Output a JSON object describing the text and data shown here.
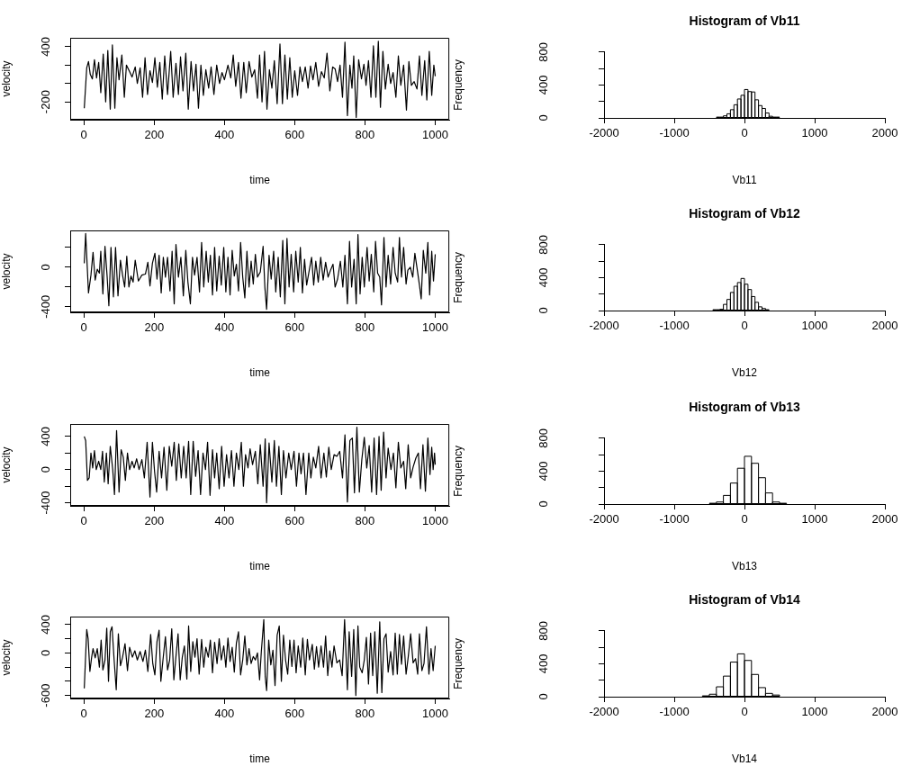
{
  "chart_data": [
    {
      "type": "line",
      "xlabel": "time",
      "ylabel": "velocity",
      "color": "#000000",
      "xlim": [
        -39,
        1040
      ],
      "ylim": [
        -395,
        498
      ],
      "xticks": [
        0,
        200,
        400,
        600,
        800,
        1000
      ],
      "yticks": [
        -200,
        {
          "value": 0,
          "label": null
        },
        {
          "value": 200,
          "label": null
        },
        400
      ],
      "x": [
        1,
        8,
        13,
        18,
        24,
        30,
        36,
        42,
        48,
        55,
        62,
        68,
        75,
        81,
        88,
        94,
        100,
        108,
        115,
        121,
        130,
        137,
        146,
        152,
        160,
        167,
        174,
        181,
        188,
        195,
        202,
        209,
        216,
        223,
        230,
        238,
        247,
        254,
        262,
        269,
        275,
        282,
        290,
        297,
        305,
        312,
        319,
        326,
        333,
        340,
        347,
        355,
        362,
        370,
        378,
        386,
        393,
        400,
        410,
        418,
        425,
        432,
        440,
        447,
        455,
        462,
        470,
        478,
        486,
        494,
        500,
        507,
        514,
        521,
        528,
        535,
        542,
        550,
        558,
        565,
        572,
        579,
        586,
        593,
        600,
        608,
        615,
        622,
        630,
        638,
        645,
        652,
        660,
        668,
        676,
        684,
        692,
        700,
        708,
        715,
        722,
        729,
        736,
        743,
        750,
        757,
        763,
        768,
        775,
        782,
        790,
        797,
        803,
        810,
        817,
        824,
        831,
        838,
        844,
        851,
        858,
        866,
        873,
        880,
        888,
        895,
        902,
        910,
        918,
        925,
        932,
        940,
        948,
        955,
        962,
        970,
        976,
        983,
        990,
        996,
        1000
      ],
      "values": [
        -270,
        170,
        240,
        100,
        50,
        260,
        60,
        230,
        -100,
        320,
        -200,
        360,
        -280,
        420,
        -270,
        280,
        40,
        310,
        -150,
        200,
        130,
        70,
        180,
        0,
        170,
        -150,
        280,
        -120,
        140,
        10,
        280,
        -40,
        230,
        -170,
        300,
        -120,
        350,
        -150,
        220,
        -120,
        290,
        -80,
        330,
        -280,
        240,
        -80,
        210,
        -270,
        200,
        -130,
        150,
        -50,
        180,
        -120,
        200,
        0,
        120,
        40,
        200,
        60,
        310,
        -30,
        230,
        -160,
        230,
        -100,
        240,
        70,
        150,
        -160,
        310,
        -200,
        350,
        -280,
        150,
        -50,
        250,
        -220,
        430,
        -220,
        310,
        -170,
        280,
        -150,
        140,
        -130,
        180,
        20,
        180,
        -50,
        190,
        40,
        230,
        -30,
        130,
        60,
        330,
        -80,
        180,
        160,
        20,
        200,
        -150,
        450,
        -350,
        200,
        -50,
        300,
        -370,
        260,
        50,
        210,
        -20,
        250,
        -150,
        410,
        -150,
        460,
        -260,
        350,
        -60,
        210,
        0,
        120,
        -150,
        300,
        -20,
        200,
        -290,
        240,
        -20,
        20,
        -60,
        300,
        -130,
        250,
        -180,
        350,
        -130,
        200,
        80
      ]
    },
    {
      "type": "histogram",
      "title": "Histogram of Vb11",
      "xlabel": "Vb11",
      "ylabel": "Frequency",
      "xlim": [
        -2000,
        2000
      ],
      "ylim": [
        0,
        800
      ],
      "xticks": [
        -2000,
        -1000,
        0,
        1000,
        2000
      ],
      "yticks": [
        0,
        {
          "value": 200,
          "label": null
        },
        400,
        {
          "value": 600,
          "label": null
        },
        800
      ],
      "bins": [
        -400,
        -350,
        -300,
        -250,
        -200,
        -150,
        -100,
        -50,
        0,
        50,
        100,
        150,
        200,
        250,
        300,
        350,
        400,
        450,
        500
      ],
      "values": [
        10,
        10,
        25,
        50,
        100,
        160,
        230,
        275,
        345,
        320,
        315,
        220,
        150,
        115,
        60,
        20,
        10,
        10
      ]
    },
    {
      "type": "line",
      "xlabel": "time",
      "ylabel": "velocity",
      "color": "#000000",
      "xlim": [
        -39,
        1040
      ],
      "ylim": [
        -456,
        371
      ],
      "xticks": [
        0,
        200,
        400,
        600,
        800,
        1000
      ],
      "yticks": [
        -400,
        {
          "value": -200,
          "label": null
        },
        0,
        {
          "value": 200,
          "label": null
        }
      ],
      "x": [
        1,
        5,
        13,
        20,
        26,
        32,
        38,
        44,
        48,
        54,
        60,
        66,
        71,
        77,
        84,
        90,
        97,
        104,
        110,
        116,
        122,
        128,
        134,
        140,
        146,
        155,
        165,
        175,
        182,
        188,
        195,
        202,
        208,
        214,
        220,
        226,
        232,
        238,
        245,
        251,
        257,
        262,
        269,
        276,
        283,
        290,
        296,
        303,
        309,
        315,
        322,
        329,
        335,
        341,
        348,
        354,
        360,
        366,
        372,
        378,
        385,
        391,
        398,
        404,
        410,
        416,
        422,
        428,
        434,
        440,
        446,
        452,
        458,
        464,
        470,
        476,
        482,
        488,
        494,
        502,
        510,
        515,
        520,
        527,
        533,
        540,
        546,
        553,
        559,
        566,
        572,
        578,
        584,
        590,
        597,
        603,
        610,
        616,
        622,
        628,
        634,
        641,
        648,
        654,
        660,
        667,
        674,
        681,
        688,
        695,
        702,
        709,
        715,
        722,
        730,
        737,
        743,
        750,
        756,
        762,
        769,
        775,
        780,
        786,
        792,
        798,
        806,
        812,
        818,
        825,
        830,
        836,
        842,
        847,
        854,
        860,
        866,
        873,
        880,
        886,
        893,
        898,
        904,
        910,
        917,
        922,
        929,
        936,
        942,
        949,
        955,
        960,
        966,
        973,
        979,
        984,
        990,
        995,
        1000
      ],
      "values": [
        40,
        340,
        -260,
        -80,
        150,
        -130,
        -20,
        -60,
        160,
        -270,
        210,
        -90,
        -390,
        200,
        -300,
        200,
        -290,
        70,
        -80,
        -200,
        110,
        -200,
        -90,
        -150,
        70,
        -140,
        -80,
        -70,
        50,
        -190,
        40,
        140,
        -120,
        120,
        -260,
        100,
        -100,
        100,
        -240,
        160,
        -370,
        230,
        -100,
        100,
        -290,
        170,
        -150,
        -370,
        100,
        -80,
        100,
        -250,
        250,
        -200,
        160,
        -150,
        120,
        -280,
        200,
        -240,
        110,
        -180,
        200,
        -250,
        100,
        -280,
        170,
        -90,
        30,
        -240,
        250,
        -100,
        -310,
        160,
        -200,
        60,
        -170,
        130,
        -100,
        -50,
        210,
        -200,
        -425,
        120,
        -120,
        160,
        -250,
        100,
        -300,
        270,
        -370,
        290,
        -200,
        130,
        -250,
        160,
        -150,
        200,
        -260,
        80,
        -180,
        -40,
        100,
        -180,
        60,
        -150,
        100,
        -130,
        50,
        -100,
        -30,
        30,
        -200,
        -120,
        60,
        -200,
        120,
        -370,
        260,
        -200,
        80,
        -370,
        330,
        -270,
        100,
        -200,
        200,
        -140,
        130,
        -250,
        260,
        -60,
        -100,
        -380,
        300,
        -200,
        120,
        -170,
        200,
        -60,
        -150,
        300,
        -100,
        200,
        -170,
        -30,
        0,
        -100,
        140,
        -30,
        -180,
        -320,
        170,
        -60,
        250,
        -280,
        160,
        -140,
        130
      ]
    },
    {
      "type": "histogram",
      "title": "Histogram of Vb12",
      "xlabel": "Vb12",
      "ylabel": "Frequency",
      "xlim": [
        -2000,
        2000
      ],
      "ylim": [
        0,
        800
      ],
      "xticks": [
        -2000,
        -1000,
        0,
        1000,
        2000
      ],
      "yticks": [
        0,
        {
          "value": 200,
          "label": null
        },
        400,
        {
          "value": 600,
          "label": null
        },
        800
      ],
      "bins": [
        -450,
        -400,
        -350,
        -300,
        -250,
        -200,
        -150,
        -100,
        -50,
        0,
        50,
        100,
        150,
        200,
        250,
        300,
        350
      ],
      "values": [
        10,
        10,
        15,
        75,
        135,
        220,
        295,
        340,
        390,
        320,
        255,
        170,
        100,
        45,
        25,
        10
      ]
    },
    {
      "type": "line",
      "xlabel": "time",
      "ylabel": "velocity",
      "color": "#000000",
      "xlim": [
        -39,
        1040
      ],
      "ylim": [
        -437,
        550
      ],
      "xticks": [
        0,
        200,
        400,
        600,
        800,
        1000
      ],
      "yticks": [
        -400,
        {
          "value": -200,
          "label": null
        },
        0,
        {
          "value": 200,
          "label": null
        },
        400
      ],
      "x": [
        1,
        5,
        10,
        15,
        20,
        25,
        30,
        35,
        42,
        48,
        53,
        58,
        64,
        69,
        75,
        82,
        87,
        93,
        100,
        106,
        112,
        118,
        124,
        130,
        137,
        143,
        150,
        157,
        165,
        172,
        180,
        188,
        195,
        201,
        207,
        214,
        221,
        228,
        236,
        243,
        250,
        257,
        263,
        270,
        277,
        284,
        291,
        298,
        304,
        311,
        318,
        325,
        332,
        339,
        346,
        352,
        359,
        366,
        372,
        378,
        385,
        392,
        399,
        406,
        413,
        420,
        427,
        434,
        441,
        448,
        454,
        460,
        467,
        473,
        480,
        488,
        495,
        502,
        510,
        516,
        520,
        527,
        535,
        542,
        548,
        555,
        562,
        568,
        575,
        583,
        590,
        598,
        605,
        612,
        618,
        625,
        632,
        640,
        646,
        653,
        660,
        668,
        675,
        683,
        690,
        697,
        704,
        712,
        720,
        728,
        736,
        743,
        750,
        757,
        764,
        770,
        777,
        784,
        791,
        798,
        805,
        812,
        819,
        826,
        833,
        840,
        846,
        853,
        860,
        866,
        874,
        881,
        888,
        895,
        902,
        910,
        916,
        923,
        930,
        937,
        945,
        952,
        958,
        965,
        972,
        979,
        985,
        990,
        994,
        998,
        1000
      ],
      "values": [
        400,
        350,
        -130,
        -100,
        200,
        20,
        230,
        0,
        100,
        0,
        220,
        -150,
        200,
        -170,
        280,
        0,
        -300,
        470,
        -270,
        240,
        150,
        -130,
        200,
        0,
        100,
        20,
        130,
        0,
        120,
        -100,
        330,
        -330,
        330,
        -20,
        -270,
        220,
        -100,
        270,
        -250,
        280,
        40,
        330,
        -130,
        310,
        -100,
        280,
        -100,
        340,
        -300,
        340,
        -80,
        230,
        -300,
        200,
        0,
        330,
        -310,
        240,
        -100,
        200,
        -230,
        280,
        -200,
        180,
        -100,
        230,
        -200,
        200,
        0,
        330,
        -200,
        180,
        20,
        250,
        60,
        220,
        -170,
        300,
        -200,
        370,
        -400,
        320,
        -150,
        350,
        -200,
        280,
        -300,
        230,
        -100,
        200,
        0,
        220,
        -200,
        200,
        -50,
        200,
        -300,
        200,
        -100,
        150,
        20,
        280,
        -100,
        200,
        -90,
        270,
        0,
        180,
        160,
        220,
        -100,
        420,
        -390,
        350,
        380,
        -280,
        510,
        -270,
        120,
        390,
        20,
        290,
        -270,
        380,
        -300,
        400,
        -250,
        450,
        -100,
        260,
        0,
        200,
        -220,
        330,
        20,
        100,
        -230,
        300,
        -100,
        30,
        140,
        200,
        -230,
        300,
        -260,
        380,
        -60,
        270,
        0,
        200,
        60
      ]
    },
    {
      "type": "histogram",
      "title": "Histogram of Vb13",
      "xlabel": "Vb13",
      "ylabel": "Frequency",
      "xlim": [
        -2000,
        2000
      ],
      "ylim": [
        0,
        800
      ],
      "xticks": [
        -2000,
        -1000,
        0,
        1000,
        2000
      ],
      "yticks": [
        0,
        {
          "value": 200,
          "label": null
        },
        400,
        {
          "value": 600,
          "label": null
        },
        800
      ],
      "bins": [
        -500,
        -400,
        -300,
        -200,
        -100,
        0,
        100,
        200,
        300,
        400,
        500,
        600
      ],
      "values": [
        10,
        25,
        105,
        255,
        435,
        580,
        495,
        320,
        135,
        25,
        10
      ]
    },
    {
      "type": "line",
      "xlabel": "time",
      "ylabel": "velocity",
      "color": "#000000",
      "xlim": [
        -39,
        1040
      ],
      "ylim": [
        -643,
        513
      ],
      "xticks": [
        0,
        200,
        400,
        600,
        800,
        1000
      ],
      "yticks": [
        -600,
        {
          "value": -400,
          "label": null
        },
        {
          "value": -200,
          "label": null
        },
        0,
        {
          "value": 200,
          "label": null
        },
        400
      ],
      "x": [
        1,
        8,
        12,
        17,
        22,
        26,
        32,
        38,
        44,
        49,
        54,
        60,
        65,
        70,
        75,
        80,
        86,
        92,
        98,
        104,
        110,
        117,
        124,
        130,
        138,
        145,
        152,
        160,
        168,
        175,
        182,
        190,
        196,
        202,
        208,
        214,
        219,
        225,
        232,
        238,
        244,
        250,
        256,
        262,
        268,
        274,
        280,
        286,
        293,
        298,
        304,
        310,
        316,
        322,
        328,
        335,
        341,
        347,
        354,
        360,
        366,
        372,
        379,
        385,
        391,
        398,
        404,
        410,
        416,
        422,
        428,
        434,
        440,
        446,
        452,
        458,
        464,
        470,
        476,
        482,
        488,
        494,
        500,
        505,
        512,
        516,
        520,
        526,
        532,
        538,
        544,
        550,
        556,
        562,
        568,
        574,
        580,
        586,
        592,
        598,
        604,
        610,
        617,
        623,
        630,
        636,
        642,
        650,
        656,
        662,
        668,
        675,
        682,
        688,
        694,
        700,
        706,
        712,
        720,
        728,
        735,
        742,
        750,
        755,
        762,
        768,
        774,
        780,
        785,
        792,
        798,
        804,
        810,
        816,
        822,
        828,
        835,
        842,
        848,
        854,
        860,
        866,
        873,
        880,
        886,
        892,
        898,
        904,
        910,
        917,
        923,
        930,
        937,
        944,
        950,
        955,
        962,
        968,
        975,
        982,
        988,
        994,
        1000
      ],
      "values": [
        -500,
        330,
        200,
        -260,
        -60,
        60,
        -70,
        60,
        -200,
        180,
        -240,
        -100,
        350,
        -400,
        300,
        370,
        -100,
        -520,
        270,
        -180,
        -60,
        130,
        -250,
        80,
        -60,
        30,
        -100,
        20,
        -120,
        40,
        -260,
        260,
        -150,
        -310,
        160,
        320,
        -400,
        -100,
        230,
        -240,
        -100,
        340,
        -380,
        -50,
        270,
        -380,
        -60,
        100,
        -370,
        380,
        -260,
        160,
        -60,
        200,
        -300,
        190,
        -200,
        80,
        -60,
        180,
        -280,
        150,
        -150,
        200,
        -100,
        100,
        -200,
        210,
        -120,
        80,
        -270,
        140,
        300,
        -310,
        -100,
        240,
        -170,
        60,
        -150,
        -50,
        -100,
        0,
        -380,
        20,
        470,
        -330,
        -530,
        180,
        -170,
        40,
        -460,
        250,
        380,
        -400,
        250,
        -100,
        -300,
        180,
        -190,
        180,
        -280,
        100,
        -200,
        210,
        -310,
        190,
        -100,
        120,
        -230,
        90,
        -200,
        100,
        -200,
        240,
        -320,
        30,
        -200,
        100,
        -140,
        -100,
        -320,
        470,
        -520,
        300,
        -330,
        330,
        -600,
        380,
        -200,
        -280,
        -100,
        220,
        -440,
        280,
        -320,
        300,
        -570,
        440,
        -560,
        200,
        270,
        -270,
        20,
        -310,
        280,
        -300,
        260,
        -160,
        240,
        -300,
        -60,
        270,
        -140,
        -80,
        -300,
        270,
        -250,
        -150,
        370,
        -300,
        60,
        -250,
        100
      ]
    },
    {
      "type": "histogram",
      "title": "Histogram of Vb14",
      "xlabel": "Vb14",
      "ylabel": "Frequency",
      "xlim": [
        -2000,
        2000
      ],
      "ylim": [
        0,
        800
      ],
      "xticks": [
        -2000,
        -1000,
        0,
        1000,
        2000
      ],
      "yticks": [
        0,
        {
          "value": 200,
          "label": null
        },
        400,
        {
          "value": 600,
          "label": null
        },
        800
      ],
      "bins": [
        -600,
        -500,
        -400,
        -300,
        -200,
        -100,
        0,
        100,
        200,
        300,
        400,
        500
      ],
      "values": [
        10,
        30,
        120,
        250,
        420,
        520,
        440,
        270,
        110,
        40,
        20
      ]
    }
  ]
}
